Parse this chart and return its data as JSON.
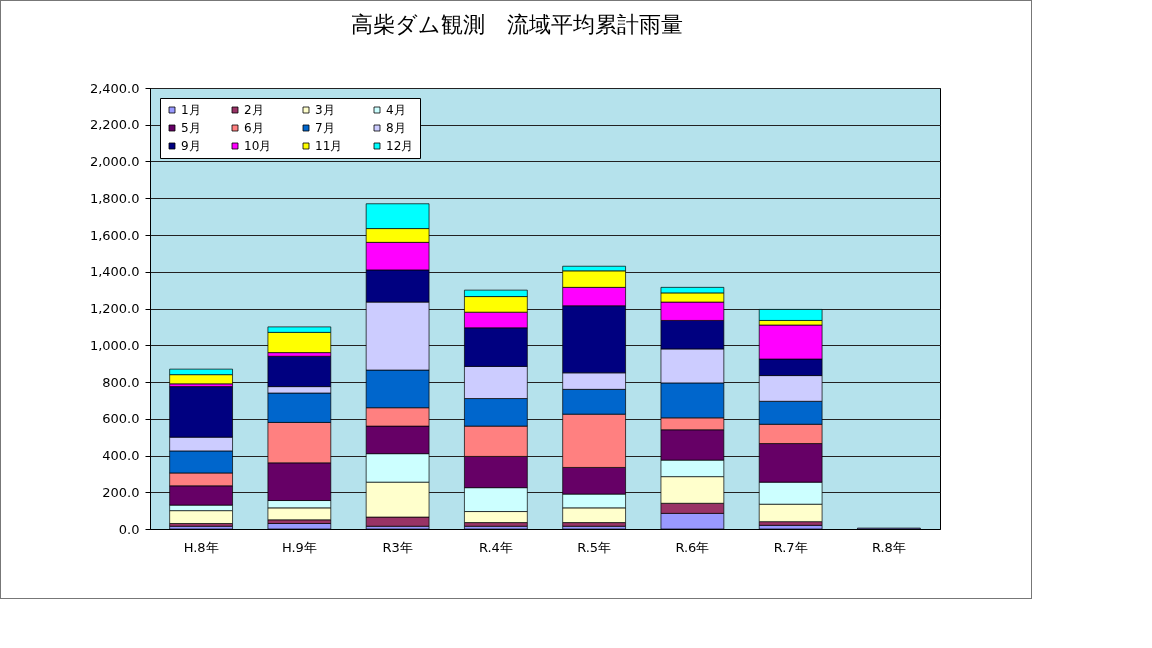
{
  "chart_data": {
    "type": "bar",
    "title": "高柴ダム観測　流域平均累計雨量",
    "stacked": true,
    "grid": "y",
    "legend": "top left",
    "categories": [
      "H.8年",
      "H.9年",
      "R3年",
      "R.4年",
      "R.5年",
      "R.6年",
      "R.7年",
      "R.8年"
    ],
    "ylim": [
      0,
      2400
    ],
    "yticks": [
      {
        "value": 0,
        "label": "0.0"
      },
      {
        "value": 200,
        "label": "200.0"
      },
      {
        "value": 400,
        "label": "400.0"
      },
      {
        "value": 600,
        "label": "600.0"
      },
      {
        "value": 800,
        "label": "800.0"
      },
      {
        "value": 1000,
        "label": "1,000.0"
      },
      {
        "value": 1200,
        "label": "1,200.0"
      },
      {
        "value": 1400,
        "label": "1,400.0"
      },
      {
        "value": 1600,
        "label": "1,600.0"
      },
      {
        "value": 1800,
        "label": "1,800.0"
      },
      {
        "value": 2000,
        "label": "2,000.0"
      },
      {
        "value": 2200,
        "label": "2,200.0"
      },
      {
        "value": 2400,
        "label": "2,400.0"
      }
    ],
    "series": [
      {
        "name": "1月",
        "color": "#9999ff",
        "values": [
          15,
          30,
          15,
          15,
          15,
          85,
          20,
          5
        ]
      },
      {
        "name": "2月",
        "color": "#993366",
        "values": [
          15,
          20,
          50,
          20,
          20,
          55,
          20,
          null
        ]
      },
      {
        "name": "3月",
        "color": "#ffffcc",
        "values": [
          70,
          65,
          190,
          60,
          80,
          145,
          95,
          null
        ]
      },
      {
        "name": "4月",
        "color": "#ccffff",
        "values": [
          30,
          40,
          155,
          130,
          75,
          90,
          120,
          null
        ]
      },
      {
        "name": "5月",
        "color": "#660066",
        "values": [
          105,
          205,
          150,
          170,
          145,
          165,
          210,
          null
        ]
      },
      {
        "name": "6月",
        "color": "#ff8080",
        "values": [
          70,
          220,
          100,
          165,
          290,
          65,
          105,
          null
        ]
      },
      {
        "name": "7月",
        "color": "#0066cc",
        "values": [
          120,
          160,
          205,
          150,
          135,
          190,
          125,
          null
        ]
      },
      {
        "name": "8月",
        "color": "#ccccff",
        "values": [
          75,
          35,
          370,
          175,
          90,
          185,
          140,
          null
        ]
      },
      {
        "name": "9月",
        "color": "#000080",
        "values": [
          275,
          165,
          175,
          210,
          365,
          155,
          90,
          null
        ]
      },
      {
        "name": "10月",
        "color": "#ff00ff",
        "values": [
          15,
          20,
          150,
          85,
          100,
          100,
          185,
          null
        ]
      },
      {
        "name": "11月",
        "color": "#ffff00",
        "values": [
          50,
          110,
          75,
          85,
          90,
          50,
          25,
          null
        ]
      },
      {
        "name": "12月",
        "color": "#00ffff",
        "values": [
          30,
          30,
          135,
          35,
          25,
          30,
          60,
          null
        ]
      }
    ]
  }
}
